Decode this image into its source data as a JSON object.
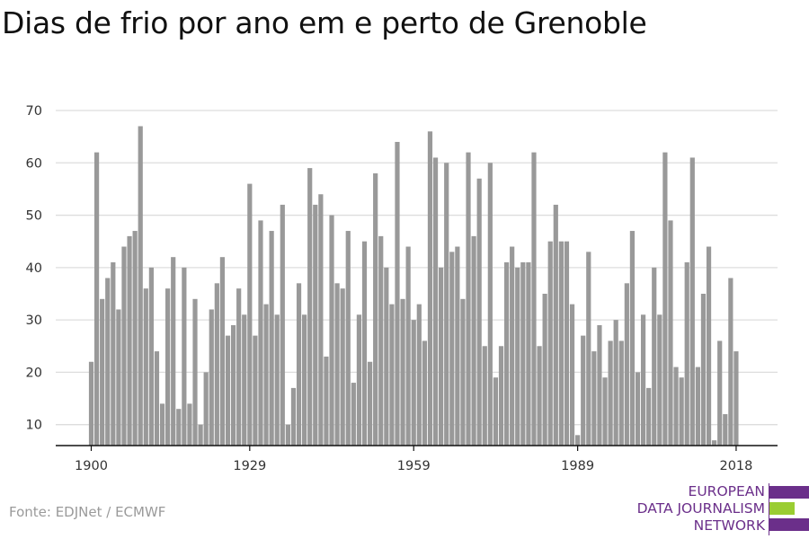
{
  "title": "Dias de frio por ano em e perto de Grenoble",
  "source": "Fonte: EDJNet / ECMWF",
  "logo": {
    "line1": "EUROPEAN",
    "line2": "DATA JOURNALISM",
    "line3": "NETWORK",
    "colors": {
      "text": "#6b2f8a",
      "bar_purple": "#6b2f8a",
      "bar_green": "#9acd32"
    }
  },
  "colors": {
    "bars": "#999999",
    "grid": "#dddddd",
    "axis": "#111111",
    "tick_text": "#333333"
  },
  "chart_data": {
    "type": "bar",
    "title": "Dias de frio por ano em e perto de Grenoble",
    "xlabel": "",
    "ylabel": "",
    "ylim": [
      6,
      70
    ],
    "yticks": [
      10,
      20,
      30,
      40,
      50,
      60,
      70
    ],
    "xticks": [
      1900,
      1929,
      1959,
      1989,
      2018
    ],
    "grid": true,
    "categories": [
      1900,
      1901,
      1902,
      1903,
      1904,
      1905,
      1906,
      1907,
      1908,
      1909,
      1910,
      1911,
      1912,
      1913,
      1914,
      1915,
      1916,
      1917,
      1918,
      1919,
      1920,
      1921,
      1922,
      1923,
      1924,
      1925,
      1926,
      1927,
      1928,
      1929,
      1930,
      1931,
      1932,
      1933,
      1934,
      1935,
      1936,
      1937,
      1938,
      1939,
      1940,
      1941,
      1942,
      1943,
      1944,
      1945,
      1946,
      1947,
      1948,
      1949,
      1950,
      1951,
      1952,
      1953,
      1954,
      1955,
      1956,
      1957,
      1958,
      1959,
      1960,
      1961,
      1962,
      1963,
      1964,
      1965,
      1966,
      1967,
      1968,
      1969,
      1970,
      1971,
      1972,
      1973,
      1974,
      1975,
      1976,
      1977,
      1978,
      1979,
      1980,
      1981,
      1982,
      1983,
      1984,
      1985,
      1986,
      1987,
      1988,
      1989,
      1990,
      1991,
      1992,
      1993,
      1994,
      1995,
      1996,
      1997,
      1998,
      1999,
      2000,
      2001,
      2002,
      2003,
      2004,
      2005,
      2006,
      2007,
      2008,
      2009,
      2010,
      2011,
      2012,
      2013,
      2014,
      2015,
      2016,
      2017,
      2018
    ],
    "values": [
      22,
      62,
      34,
      38,
      41,
      32,
      44,
      46,
      47,
      67,
      36,
      40,
      24,
      14,
      36,
      42,
      13,
      40,
      14,
      34,
      10,
      20,
      32,
      37,
      42,
      27,
      29,
      36,
      31,
      56,
      27,
      49,
      33,
      47,
      31,
      52,
      10,
      17,
      37,
      31,
      59,
      52,
      54,
      23,
      50,
      37,
      36,
      47,
      18,
      31,
      45,
      22,
      58,
      46,
      40,
      33,
      64,
      34,
      44,
      30,
      33,
      26,
      66,
      61,
      40,
      60,
      43,
      44,
      34,
      62,
      46,
      57,
      25,
      60,
      19,
      25,
      41,
      44,
      40,
      41,
      41,
      62,
      25,
      35,
      45,
      52,
      45,
      45,
      33,
      8,
      27,
      43,
      24,
      29,
      19,
      26,
      30,
      26,
      37,
      47,
      20,
      31,
      17,
      40,
      31,
      62,
      49,
      21,
      19,
      41,
      61,
      21,
      35,
      44,
      7,
      26,
      12,
      38,
      24
    ]
  }
}
